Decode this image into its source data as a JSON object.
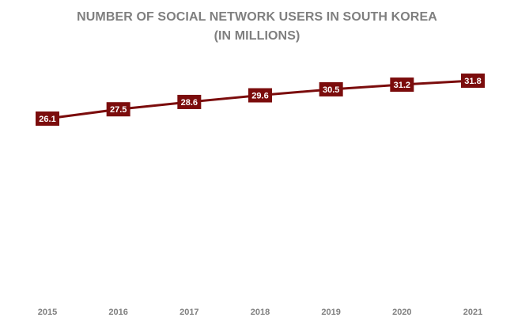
{
  "chart_data": {
    "type": "line",
    "title": "NUMBER OF SOCIAL NETWORK USERS IN SOUTH KOREA",
    "subtitle": "(IN MILLIONS)",
    "x": [
      "2015",
      "2016",
      "2017",
      "2018",
      "2019",
      "2020",
      "2021"
    ],
    "series": [
      {
        "values": [
          26.1,
          27.5,
          28.6,
          29.6,
          30.5,
          31.2,
          31.8
        ]
      }
    ],
    "data_labels": [
      "26.1",
      "27.5",
      "28.6",
      "29.6",
      "30.5",
      "31.2",
      "31.8"
    ],
    "xlabel": "",
    "ylabel": "",
    "ylim": [
      0,
      35
    ],
    "grid": false,
    "legend": "none",
    "drop_lines": true,
    "colors": {
      "line": "#7b0c0c",
      "label_bg": "#7b0c0c",
      "label_text": "#ffffff",
      "drop_line": "#a82a2a",
      "axis_text": "#7f7f7f",
      "title": "#7f7f7f"
    }
  }
}
